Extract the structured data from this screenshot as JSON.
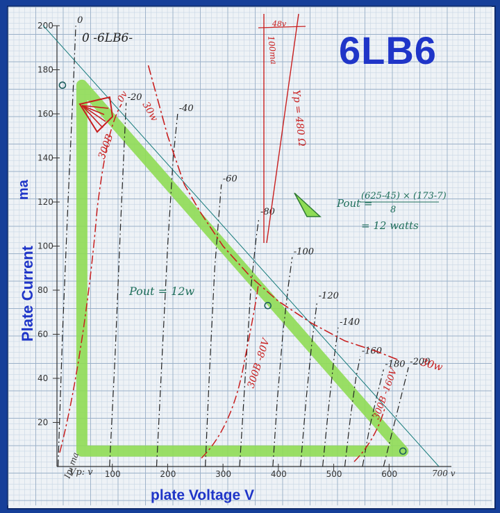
{
  "header": {
    "big_title": "6LB6",
    "ylabel": "Plate Current",
    "yunit": "ma",
    "xlabel": "plate Voltage  V"
  },
  "annotations": {
    "tube_label": "0 -6LB6-",
    "pout_formula_num": "(625-45) × (173-7)",
    "pout_formula_lhs": "Pout =",
    "pout_formula_den": "8",
    "pout_result": "= 12 watts",
    "pout_inplot": "Pout = 12w",
    "load_line": "Yp = 480 Ω",
    "bias": "48v",
    "current": "100ma",
    "dissipation_30w_top": "30w",
    "dissipation_30w_bottom": "30w",
    "curve_300b_0v": "300B",
    "curve_300b_0v_grid": "0v",
    "curve_300b_80v": "300B -80V",
    "curve_300b_160v": "300B -160V",
    "y_axis_tag": "Ip: ma",
    "x_axis_tag": "Vp: v",
    "x_end_tag": "700 v"
  },
  "chart_data": {
    "type": "line",
    "title": "6LB6",
    "xlabel": "plate Voltage  V",
    "ylabel": "Plate Current",
    "xlim": [
      0,
      700
    ],
    "ylim": [
      0,
      200
    ],
    "x_ticks": [
      100,
      200,
      300,
      400,
      500,
      600
    ],
    "y_ticks": [
      20,
      40,
      60,
      80,
      100,
      120,
      140,
      160,
      180,
      200
    ],
    "grid": true,
    "grid_bias_curves": [
      {
        "name": "0",
        "points": [
          [
            2,
            0
          ],
          [
            10,
            60
          ],
          [
            20,
            120
          ],
          [
            30,
            175
          ],
          [
            34,
            200
          ]
        ]
      },
      {
        "name": "-20",
        "points": [
          [
            95,
            0
          ],
          [
            105,
            50
          ],
          [
            115,
            110
          ],
          [
            125,
            165
          ]
        ]
      },
      {
        "name": "-40",
        "points": [
          [
            180,
            0
          ],
          [
            190,
            50
          ],
          [
            200,
            100
          ],
          [
            210,
            140
          ],
          [
            218,
            160
          ]
        ]
      },
      {
        "name": "-60",
        "points": [
          [
            268,
            0
          ],
          [
            275,
            40
          ],
          [
            285,
            90
          ],
          [
            297,
            128
          ]
        ]
      },
      {
        "name": "-80",
        "points": [
          [
            330,
            0
          ],
          [
            340,
            40
          ],
          [
            350,
            80
          ],
          [
            360,
            104
          ],
          [
            365,
            113
          ]
        ]
      },
      {
        "name": "-100",
        "points": [
          [
            390,
            0
          ],
          [
            398,
            30
          ],
          [
            408,
            60
          ],
          [
            418,
            82
          ],
          [
            425,
            95
          ]
        ]
      },
      {
        "name": "-120",
        "points": [
          [
            440,
            0
          ],
          [
            450,
            30
          ],
          [
            460,
            55
          ],
          [
            470,
            75
          ]
        ]
      },
      {
        "name": "-140",
        "points": [
          [
            480,
            0
          ],
          [
            490,
            25
          ],
          [
            500,
            48
          ],
          [
            508,
            63
          ]
        ]
      },
      {
        "name": "-160",
        "points": [
          [
            520,
            0
          ],
          [
            530,
            22
          ],
          [
            540,
            40
          ],
          [
            548,
            50
          ]
        ]
      },
      {
        "name": "-180",
        "points": [
          [
            552,
            0
          ],
          [
            565,
            18
          ],
          [
            578,
            32
          ],
          [
            590,
            44
          ]
        ]
      },
      {
        "name": "-200",
        "points": [
          [
            590,
            0
          ],
          [
            605,
            15
          ],
          [
            620,
            30
          ],
          [
            635,
            45
          ]
        ]
      }
    ],
    "load_line": {
      "points": [
        [
          0,
          197
        ],
        [
          690,
          0
        ]
      ]
    },
    "triangle": {
      "points": [
        [
          45,
          7
        ],
        [
          45,
          173
        ],
        [
          625,
          7
        ]
      ]
    },
    "tangent_points": [
      [
        10,
        173
      ],
      [
        381,
        73
      ],
      [
        625,
        7
      ]
    ],
    "dissipation_30w": {
      "points": [
        [
          165,
          182
        ],
        [
          200,
          150
        ],
        [
          230,
          128
        ],
        [
          260,
          115
        ],
        [
          300,
          100
        ],
        [
          350,
          86
        ],
        [
          400,
          75
        ],
        [
          460,
          65
        ],
        [
          520,
          57
        ],
        [
          580,
          52
        ],
        [
          620,
          48
        ]
      ]
    },
    "red_labels": [
      "300B",
      "300B -80V",
      "300B -160V",
      "30w"
    ],
    "colors": {
      "load_line": "#157a7a",
      "triangle": "#8fdc55",
      "red": "#c81e1e",
      "grid": "#9ab0c8",
      "text": "#1f35c8",
      "pencil": "#222222"
    }
  }
}
